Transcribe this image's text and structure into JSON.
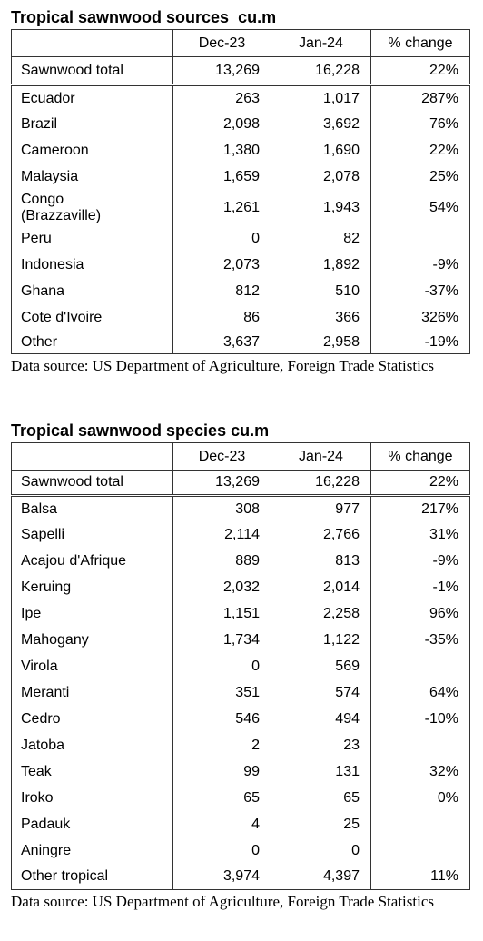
{
  "tables": [
    {
      "title": "Tropical sawnwood sources  cu.m",
      "header": [
        "Dec-23",
        "Jan-24",
        "% change"
      ],
      "total": [
        "Sawnwood total",
        "13,269",
        "16,228",
        "22%"
      ],
      "rows": [
        [
          "Ecuador",
          "263",
          "1,017",
          "287%"
        ],
        [
          "Brazil",
          "2,098",
          "3,692",
          "76%"
        ],
        [
          "Cameroon",
          "1,380",
          "1,690",
          "22%"
        ],
        [
          "Malaysia",
          "1,659",
          "2,078",
          "25%"
        ],
        [
          "Congo\n(Brazzaville)",
          "1,261",
          "1,943",
          "54%"
        ],
        [
          "Peru",
          "0",
          "82"
        ],
        [
          "Indonesia",
          "2,073",
          "1,892",
          "-9%"
        ],
        [
          "Ghana",
          "812",
          "510",
          "-37%"
        ],
        [
          "Cote d'Ivoire",
          "86",
          "366",
          "326%"
        ],
        [
          "Other",
          "3,637",
          "2,958",
          "-19%"
        ]
      ],
      "source": "Data source: US Department of Agriculture, Foreign Trade Statistics"
    },
    {
      "title": "Tropical sawnwood species cu.m",
      "header": [
        "Dec-23",
        "Jan-24",
        "% change"
      ],
      "total": [
        "Sawnwood total",
        "13,269",
        "16,228",
        "22%"
      ],
      "rows": [
        [
          "Balsa",
          "308",
          "977",
          "217%"
        ],
        [
          "Sapelli",
          "2,114",
          "2,766",
          "31%"
        ],
        [
          "Acajou d'Afrique",
          "889",
          "813",
          "-9%"
        ],
        [
          "Keruing",
          "2,032",
          "2,014",
          "-1%"
        ],
        [
          "Ipe",
          "1,151",
          "2,258",
          "96%"
        ],
        [
          "Mahogany",
          "1,734",
          "1,122",
          "-35%"
        ],
        [
          "Virola",
          "0",
          "569"
        ],
        [
          "Meranti",
          "351",
          "574",
          "64%"
        ],
        [
          "Cedro",
          "546",
          "494",
          "-10%"
        ],
        [
          "Jatoba",
          "2",
          "23"
        ],
        [
          "Teak",
          "99",
          "131",
          "32%"
        ],
        [
          "Iroko",
          "65",
          "65",
          "0%"
        ],
        [
          "Padauk",
          "4",
          "25"
        ],
        [
          "Aningre",
          "0",
          "0"
        ],
        [
          "Other tropical",
          "3,974",
          "4,397",
          "11%"
        ]
      ],
      "source": "Data source: US Department of Agriculture, Foreign Trade Statistics"
    }
  ]
}
